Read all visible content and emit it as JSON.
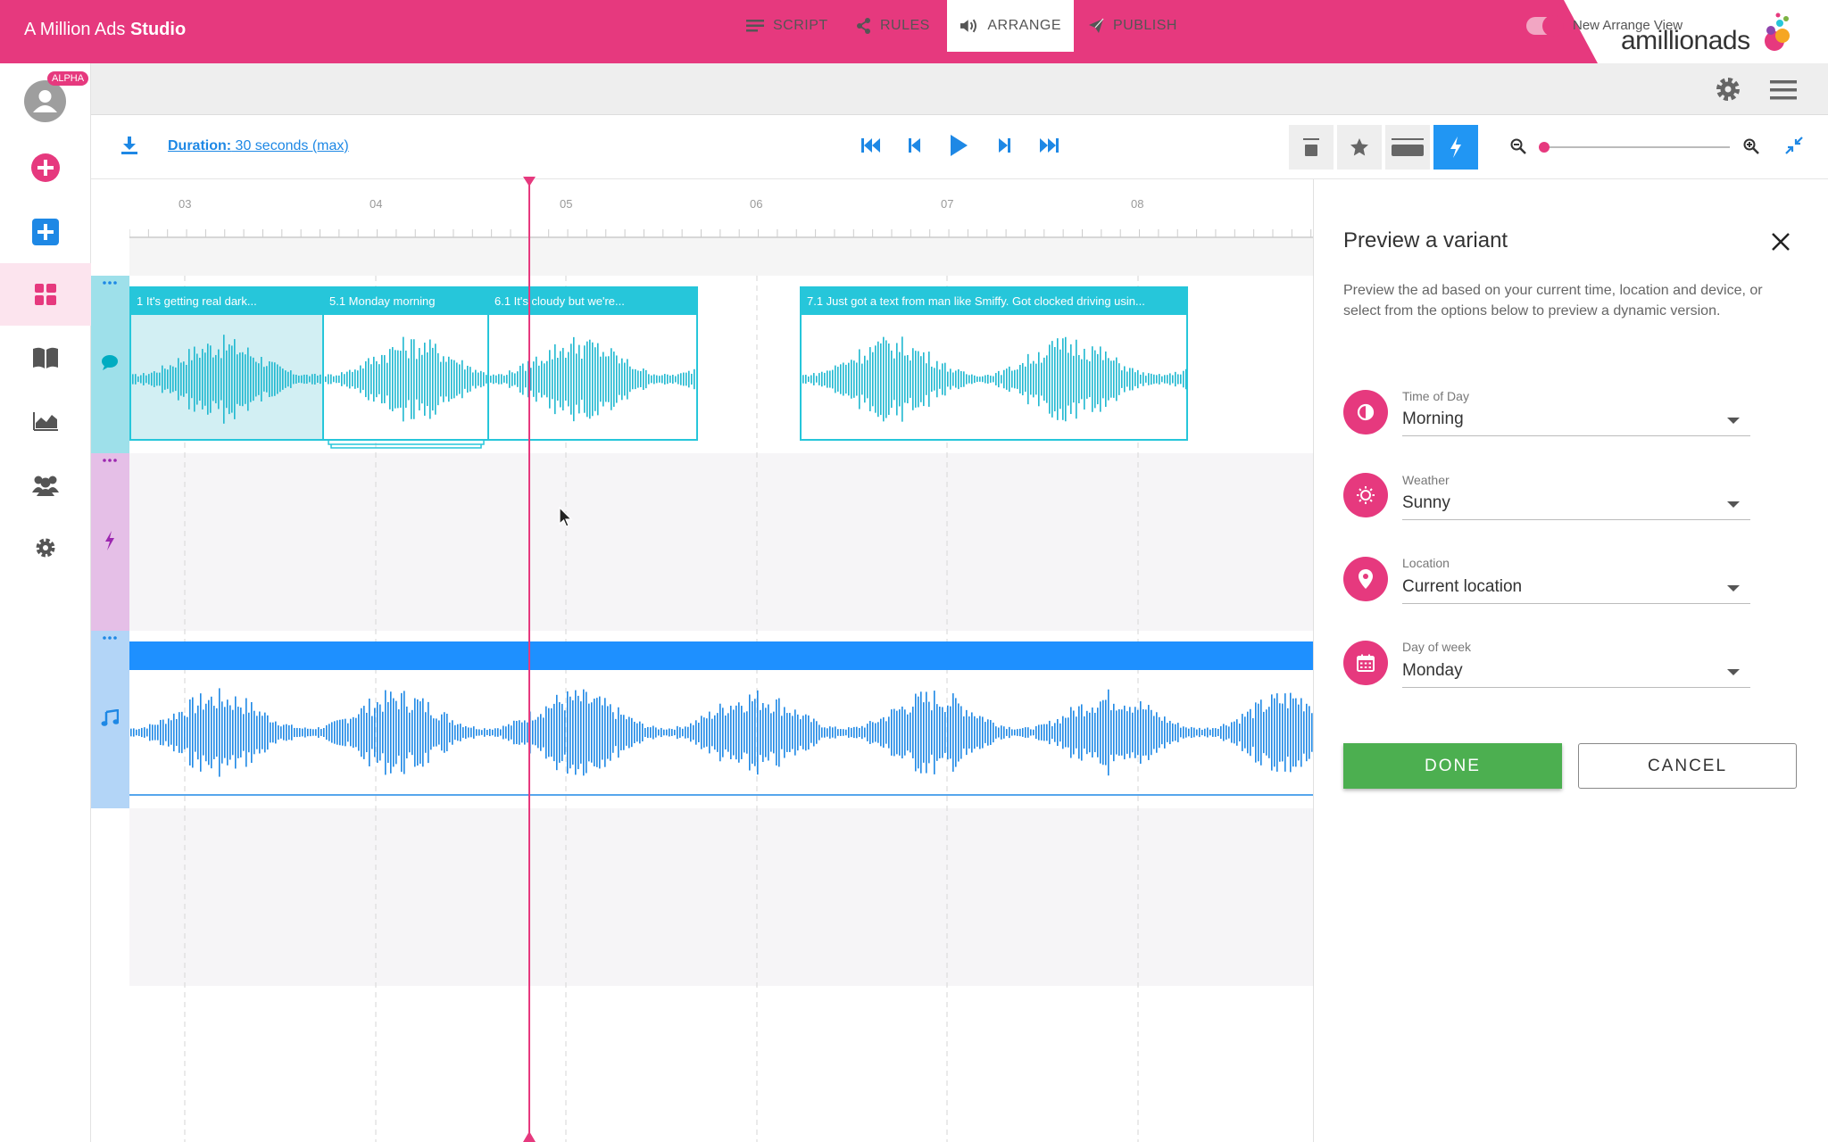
{
  "header": {
    "title_prefix": "A Million Ads ",
    "title_bold": "Studio",
    "logo_text": "amillionads"
  },
  "sidebar": {
    "badge": "ALPHA"
  },
  "tabs": [
    {
      "label": "SCRIPT",
      "icon": "lines-icon"
    },
    {
      "label": "RULES",
      "icon": "share-icon"
    },
    {
      "label": "ARRANGE",
      "icon": "speaker-icon",
      "active": true
    },
    {
      "label": "PUBLISH",
      "icon": "paper-plane-icon"
    }
  ],
  "toggle": {
    "label": "New Arrange View",
    "on": true
  },
  "toolbar": {
    "duration_label": "Duration:",
    "duration_value": " 30 seconds (max)"
  },
  "ruler": {
    "labels": [
      "03",
      "04",
      "05",
      "06",
      "07",
      "08"
    ]
  },
  "clips": [
    {
      "label": "1 It's getting real dark...",
      "selected": true
    },
    {
      "label": "5.1 Monday morning",
      "selected": false
    },
    {
      "label": "6.1 It's cloudy but we're...",
      "selected": false
    },
    {
      "label": "7.1 Just got a text from man like Smiffy. Got clocked driving usin...",
      "selected": false
    }
  ],
  "panel": {
    "title": "Preview a variant",
    "description": "Preview the ad based on your current time, location and device, or select from the options below to preview a dynamic version.",
    "fields": [
      {
        "label": "Time of Day",
        "value": "Morning",
        "icon": "half-circle-icon"
      },
      {
        "label": "Weather",
        "value": "Sunny",
        "icon": "sun-icon"
      },
      {
        "label": "Location",
        "value": "Current location",
        "icon": "map-pin-icon"
      },
      {
        "label": "Day of week",
        "value": "Monday",
        "icon": "calendar-icon"
      }
    ],
    "done": "DONE",
    "cancel": "CANCEL"
  },
  "colors": {
    "brand": "#e6397e",
    "clip": "#26c6da",
    "music": "#1e90ff",
    "done": "#4caf50"
  }
}
